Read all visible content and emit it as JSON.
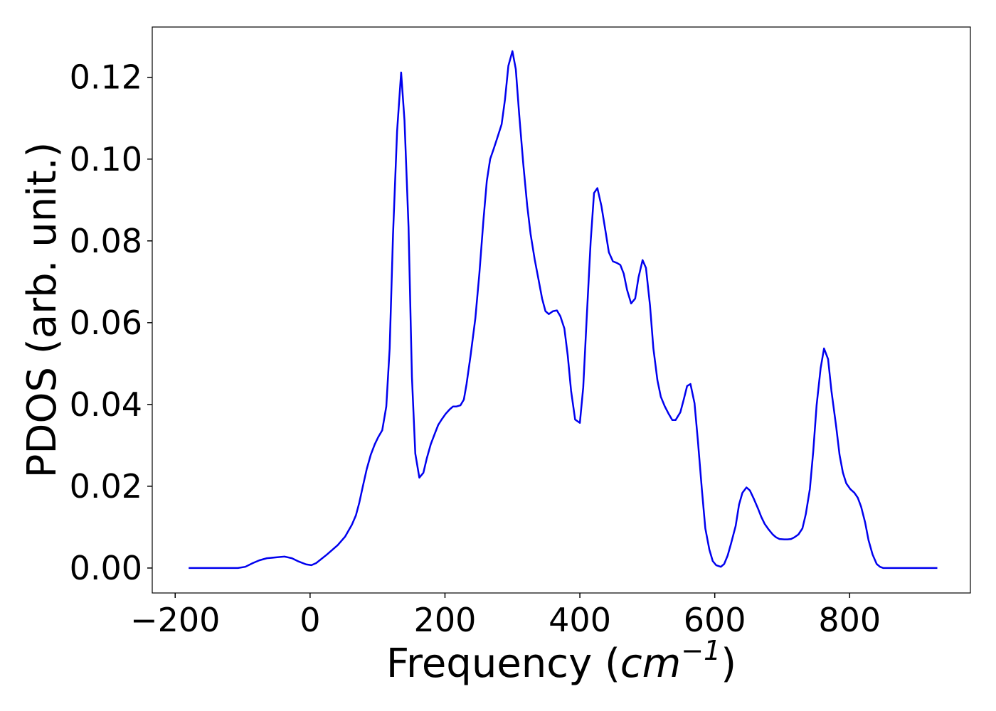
{
  "chart_data": {
    "type": "line",
    "xlabel": {
      "text": "Frequency (",
      "math": "cm",
      "sup": "−1",
      "end": ")"
    },
    "ylabel": "PDOS (arb. unit.)",
    "color": "#0000ee",
    "x": [
      -180,
      -107,
      -96,
      -85,
      -75,
      -64,
      -38,
      -27,
      -17,
      -6,
      2,
      9,
      25,
      41,
      52,
      62,
      68,
      73,
      78,
      84,
      90,
      96,
      101,
      107,
      113,
      118,
      123,
      129,
      135,
      140,
      146,
      151,
      156,
      162,
      168,
      173,
      179,
      185,
      190,
      195,
      201,
      207,
      212,
      217,
      223,
      228,
      232,
      238,
      245,
      251,
      257,
      262,
      267,
      272,
      277,
      284,
      289,
      294,
      300,
      305,
      310,
      316,
      322,
      327,
      333,
      339,
      344,
      349,
      354,
      360,
      366,
      371,
      377,
      382,
      387,
      393,
      400,
      405,
      410,
      416,
      421,
      426,
      432,
      438,
      443,
      449,
      455,
      460,
      465,
      470,
      476,
      482,
      487,
      493,
      498,
      504,
      509,
      515,
      520,
      526,
      532,
      537,
      542,
      549,
      554,
      559,
      564,
      570,
      575,
      581,
      586,
      592,
      597,
      602,
      609,
      614,
      619,
      624,
      631,
      636,
      641,
      647,
      652,
      658,
      664,
      669,
      674,
      680,
      686,
      691,
      696,
      703,
      708,
      713,
      718,
      724,
      730,
      735,
      741,
      746,
      751,
      757,
      762,
      768,
      773,
      780,
      785,
      790,
      795,
      801,
      807,
      812,
      817,
      823,
      828,
      834,
      840,
      845,
      850,
      930
    ],
    "values": [
      0,
      0,
      0.0003,
      0.0012,
      0.0019,
      0.0024,
      0.0028,
      0.0024,
      0.0016,
      0.0009,
      0.0007,
      0.0012,
      0.0033,
      0.0056,
      0.0077,
      0.0106,
      0.0129,
      0.016,
      0.0198,
      0.0242,
      0.0277,
      0.0303,
      0.032,
      0.0337,
      0.0395,
      0.0537,
      0.0816,
      0.1068,
      0.1212,
      0.1094,
      0.0833,
      0.0468,
      0.028,
      0.0221,
      0.0233,
      0.0268,
      0.0303,
      0.0329,
      0.035,
      0.0363,
      0.0377,
      0.0388,
      0.0395,
      0.0395,
      0.0398,
      0.0412,
      0.045,
      0.052,
      0.061,
      0.072,
      0.085,
      0.0946,
      0.1,
      0.1024,
      0.1049,
      0.1085,
      0.1146,
      0.1228,
      0.1264,
      0.122,
      0.111,
      0.099,
      0.0885,
      0.0816,
      0.0755,
      0.0703,
      0.0659,
      0.0628,
      0.0621,
      0.0628,
      0.063,
      0.0616,
      0.0586,
      0.052,
      0.0433,
      0.0363,
      0.0355,
      0.0442,
      0.0607,
      0.0798,
      0.0917,
      0.0929,
      0.0885,
      0.0824,
      0.0772,
      0.075,
      0.0746,
      0.0741,
      0.072,
      0.068,
      0.0647,
      0.0659,
      0.0711,
      0.0753,
      0.0734,
      0.0642,
      0.0537,
      0.0459,
      0.0419,
      0.0395,
      0.0376,
      0.0362,
      0.0362,
      0.0381,
      0.0412,
      0.0445,
      0.045,
      0.0403,
      0.0311,
      0.019,
      0.0097,
      0.0045,
      0.0017,
      0.0007,
      0.0003,
      0.001,
      0.003,
      0.0059,
      0.0103,
      0.0155,
      0.0184,
      0.0197,
      0.019,
      0.0169,
      0.0146,
      0.0125,
      0.0108,
      0.0094,
      0.0082,
      0.0075,
      0.0071,
      0.007,
      0.007,
      0.0071,
      0.0075,
      0.0082,
      0.0097,
      0.0132,
      0.0193,
      0.0285,
      0.0398,
      0.0489,
      0.0537,
      0.0511,
      0.0433,
      0.0346,
      0.0277,
      0.0233,
      0.0207,
      0.0193,
      0.0184,
      0.0172,
      0.015,
      0.0111,
      0.0068,
      0.0033,
      0.001,
      0.0003,
      0,
      0
    ],
    "xlim": [
      -234,
      979
    ],
    "ylim": [
      -0.0061,
      0.1323
    ],
    "xticks": [
      {
        "value": -200,
        "label": "−200"
      },
      0,
      200,
      400,
      600,
      800
    ],
    "yticks": [
      {
        "value": 0,
        "label": "0.00"
      },
      0.02,
      0.04,
      0.06,
      0.08,
      {
        "value": 0.1,
        "label": "0.10"
      },
      0.12
    ]
  }
}
